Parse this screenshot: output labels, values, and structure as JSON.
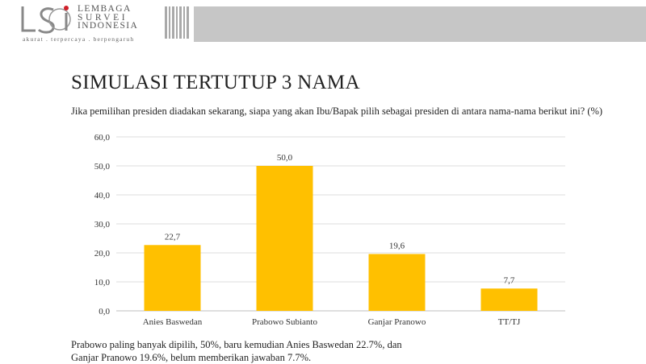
{
  "header": {
    "logo_lines": [
      "LEMBAGA",
      "SURVEI",
      "INDONESIA"
    ],
    "tagline": "akurat . terpercaya . berpengaruh",
    "logo_icon": "lsi-logo-icon"
  },
  "title": "SIMULASI TERTUTUP 3 NAMA",
  "question": "Jika pemilihan presiden diadakan sekarang, siapa yang akan Ibu/Bapak pilih sebagai presiden di antara nama-nama berikut ini?  (%)",
  "chart_data": {
    "type": "bar",
    "categories": [
      "Anies Baswedan",
      "Prabowo Subianto",
      "Ganjar Pranowo",
      "TT/TJ"
    ],
    "values": [
      22.7,
      50.0,
      19.6,
      7.7
    ],
    "value_labels": [
      "22,7",
      "50,0",
      "19,6",
      "7,7"
    ],
    "yticks": [
      "0,0",
      "10,0",
      "20,0",
      "30,0",
      "40,0",
      "50,0",
      "60,0"
    ],
    "ylim": [
      0,
      60
    ],
    "grid": true,
    "bar_color": "#FFC000",
    "title": "",
    "xlabel": "",
    "ylabel": ""
  },
  "footer": {
    "line1": "Prabowo paling banyak dipilih, 50%, baru kemudian Anies Baswedan 22.7%, dan",
    "line2": "Ganjar Pranowo 19.6%, belum memberikan jawaban 7.7%."
  }
}
